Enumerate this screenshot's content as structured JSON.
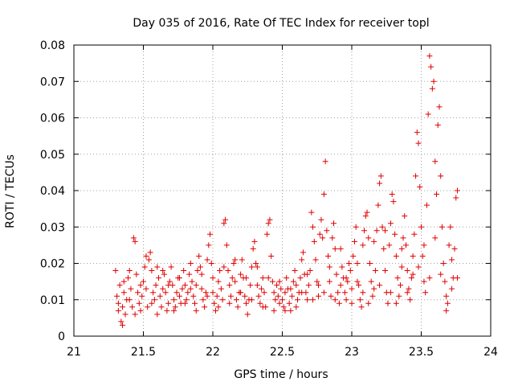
{
  "chart_data": {
    "type": "scatter",
    "title": "Day 035 of 2016, Rate Of TEC Index for receiver topl",
    "xlabel": "GPS time / hours",
    "ylabel": "ROTI / TECUs",
    "xlim": [
      21,
      24
    ],
    "ylim": [
      0,
      0.08
    ],
    "grid": true,
    "marker": "+",
    "marker_color": "#e00000",
    "x_ticks": [
      21,
      21.5,
      22,
      22.5,
      23,
      23.5,
      24
    ],
    "x_tick_labels": [
      "21",
      "21.5",
      "22",
      "22.5",
      "23",
      "23.5",
      "24"
    ],
    "y_ticks": [
      0,
      0.01,
      0.02,
      0.03,
      0.04,
      0.05,
      0.06,
      0.07,
      0.08
    ],
    "y_tick_labels": [
      "0",
      "0.01",
      "0.02",
      "0.03",
      "0.04",
      "0.05",
      "0.06",
      "0.07",
      "0.08"
    ],
    "points": [
      [
        21.3,
        0.018
      ],
      [
        21.31,
        0.011
      ],
      [
        21.32,
        0.009
      ],
      [
        21.33,
        0.014
      ],
      [
        21.34,
        0.004
      ],
      [
        21.35,
        0.003
      ],
      [
        21.35,
        0.008
      ],
      [
        21.36,
        0.012
      ],
      [
        21.37,
        0.006
      ],
      [
        21.38,
        0.01
      ],
      [
        21.39,
        0.016
      ],
      [
        21.4,
        0.018
      ],
      [
        21.41,
        0.013
      ],
      [
        21.42,
        0.008
      ],
      [
        21.43,
        0.027
      ],
      [
        21.44,
        0.026
      ],
      [
        21.45,
        0.017
      ],
      [
        21.46,
        0.012
      ],
      [
        21.47,
        0.009
      ],
      [
        21.48,
        0.007
      ],
      [
        21.49,
        0.011
      ],
      [
        21.5,
        0.015
      ],
      [
        21.51,
        0.019
      ],
      [
        21.52,
        0.013
      ],
      [
        21.53,
        0.008
      ],
      [
        21.54,
        0.021
      ],
      [
        21.55,
        0.023
      ],
      [
        21.56,
        0.018
      ],
      [
        21.57,
        0.012
      ],
      [
        21.58,
        0.01
      ],
      [
        21.59,
        0.014
      ],
      [
        21.6,
        0.019
      ],
      [
        21.61,
        0.016
      ],
      [
        21.62,
        0.011
      ],
      [
        21.63,
        0.008
      ],
      [
        21.64,
        0.013
      ],
      [
        21.65,
        0.017
      ],
      [
        21.66,
        0.012
      ],
      [
        21.67,
        0.007
      ],
      [
        21.68,
        0.009
      ],
      [
        21.69,
        0.015
      ],
      [
        21.7,
        0.019
      ],
      [
        21.71,
        0.014
      ],
      [
        21.72,
        0.01
      ],
      [
        21.73,
        0.008
      ],
      [
        21.74,
        0.012
      ],
      [
        21.75,
        0.016
      ],
      [
        21.76,
        0.011
      ],
      [
        21.77,
        0.009
      ],
      [
        21.78,
        0.013
      ],
      [
        21.79,
        0.018
      ],
      [
        21.8,
        0.014
      ],
      [
        21.81,
        0.01
      ],
      [
        21.82,
        0.012
      ],
      [
        21.83,
        0.017
      ],
      [
        21.84,
        0.02
      ],
      [
        21.85,
        0.015
      ],
      [
        21.86,
        0.011
      ],
      [
        21.87,
        0.009
      ],
      [
        21.88,
        0.014
      ],
      [
        21.89,
        0.018
      ],
      [
        21.9,
        0.022
      ],
      [
        21.91,
        0.019
      ],
      [
        21.92,
        0.013
      ],
      [
        21.93,
        0.01
      ],
      [
        21.94,
        0.008
      ],
      [
        21.95,
        0.012
      ],
      [
        21.96,
        0.021
      ],
      [
        21.97,
        0.025
      ],
      [
        21.98,
        0.028
      ],
      [
        21.99,
        0.02
      ],
      [
        22.0,
        0.012
      ],
      [
        22.01,
        0.009
      ],
      [
        22.02,
        0.007
      ],
      [
        22.03,
        0.011
      ],
      [
        22.04,
        0.015
      ],
      [
        22.05,
        0.018
      ],
      [
        22.06,
        0.013
      ],
      [
        22.07,
        0.01
      ],
      [
        22.08,
        0.031
      ],
      [
        22.09,
        0.032
      ],
      [
        22.1,
        0.025
      ],
      [
        22.11,
        0.018
      ],
      [
        22.12,
        0.014
      ],
      [
        22.13,
        0.011
      ],
      [
        22.14,
        0.016
      ],
      [
        22.15,
        0.02
      ],
      [
        22.16,
        0.015
      ],
      [
        22.17,
        0.01
      ],
      [
        22.18,
        0.008
      ],
      [
        22.19,
        0.012
      ],
      [
        22.2,
        0.017
      ],
      [
        22.21,
        0.021
      ],
      [
        22.22,
        0.016
      ],
      [
        22.23,
        0.011
      ],
      [
        22.24,
        0.009
      ],
      [
        22.25,
        0.006
      ],
      [
        22.26,
        0.01
      ],
      [
        22.27,
        0.014
      ],
      [
        22.28,
        0.019
      ],
      [
        22.29,
        0.024
      ],
      [
        22.3,
        0.026
      ],
      [
        22.31,
        0.02
      ],
      [
        22.32,
        0.014
      ],
      [
        22.33,
        0.011
      ],
      [
        22.34,
        0.009
      ],
      [
        22.35,
        0.013
      ],
      [
        22.36,
        0.016
      ],
      [
        22.37,
        0.012
      ],
      [
        22.38,
        0.008
      ],
      [
        22.39,
        0.028
      ],
      [
        22.4,
        0.031
      ],
      [
        22.41,
        0.032
      ],
      [
        22.42,
        0.022
      ],
      [
        22.43,
        0.015
      ],
      [
        22.44,
        0.012
      ],
      [
        22.45,
        0.01
      ],
      [
        22.46,
        0.014
      ],
      [
        22.47,
        0.011
      ],
      [
        22.48,
        0.009
      ],
      [
        22.49,
        0.013
      ],
      [
        22.5,
        0.01
      ],
      [
        22.51,
        0.008
      ],
      [
        22.52,
        0.012
      ],
      [
        22.53,
        0.016
      ],
      [
        22.54,
        0.013
      ],
      [
        22.55,
        0.009
      ],
      [
        22.56,
        0.007
      ],
      [
        22.57,
        0.011
      ],
      [
        22.58,
        0.015
      ],
      [
        22.59,
        0.018
      ],
      [
        22.6,
        0.014
      ],
      [
        22.61,
        0.01
      ],
      [
        22.62,
        0.012
      ],
      [
        22.63,
        0.016
      ],
      [
        22.64,
        0.021
      ],
      [
        22.65,
        0.023
      ],
      [
        22.66,
        0.017
      ],
      [
        22.67,
        0.012
      ],
      [
        22.68,
        0.01
      ],
      [
        22.69,
        0.014
      ],
      [
        22.7,
        0.018
      ],
      [
        22.71,
        0.034
      ],
      [
        22.72,
        0.03
      ],
      [
        22.73,
        0.026
      ],
      [
        22.74,
        0.021
      ],
      [
        22.75,
        0.015
      ],
      [
        22.76,
        0.011
      ],
      [
        22.77,
        0.028
      ],
      [
        22.78,
        0.032
      ],
      [
        22.79,
        0.027
      ],
      [
        22.8,
        0.039
      ],
      [
        22.81,
        0.048
      ],
      [
        22.82,
        0.029
      ],
      [
        22.83,
        0.022
      ],
      [
        22.84,
        0.015
      ],
      [
        22.85,
        0.011
      ],
      [
        22.86,
        0.027
      ],
      [
        22.87,
        0.031
      ],
      [
        22.88,
        0.024
      ],
      [
        22.89,
        0.017
      ],
      [
        22.9,
        0.012
      ],
      [
        22.91,
        0.009
      ],
      [
        22.92,
        0.014
      ],
      [
        22.93,
        0.019
      ],
      [
        22.94,
        0.016
      ],
      [
        22.95,
        0.012
      ],
      [
        22.96,
        0.01
      ],
      [
        22.97,
        0.015
      ],
      [
        22.98,
        0.02
      ],
      [
        22.99,
        0.018
      ],
      [
        23.0,
        0.013
      ],
      [
        23.01,
        0.022
      ],
      [
        23.02,
        0.026
      ],
      [
        23.03,
        0.03
      ],
      [
        23.04,
        0.02
      ],
      [
        23.05,
        0.014
      ],
      [
        23.06,
        0.01
      ],
      [
        23.07,
        0.008
      ],
      [
        23.08,
        0.025
      ],
      [
        23.09,
        0.029
      ],
      [
        23.1,
        0.033
      ],
      [
        23.11,
        0.034
      ],
      [
        23.12,
        0.027
      ],
      [
        23.13,
        0.02
      ],
      [
        23.14,
        0.015
      ],
      [
        23.15,
        0.011
      ],
      [
        23.16,
        0.013
      ],
      [
        23.17,
        0.018
      ],
      [
        23.18,
        0.029
      ],
      [
        23.19,
        0.036
      ],
      [
        23.2,
        0.042
      ],
      [
        23.21,
        0.044
      ],
      [
        23.22,
        0.03
      ],
      [
        23.23,
        0.024
      ],
      [
        23.24,
        0.018
      ],
      [
        23.25,
        0.012
      ],
      [
        23.26,
        0.009
      ],
      [
        23.27,
        0.025
      ],
      [
        23.28,
        0.031
      ],
      [
        23.29,
        0.039
      ],
      [
        23.3,
        0.037
      ],
      [
        23.31,
        0.028
      ],
      [
        23.32,
        0.022
      ],
      [
        23.33,
        0.016
      ],
      [
        23.34,
        0.011
      ],
      [
        23.35,
        0.014
      ],
      [
        23.36,
        0.019
      ],
      [
        23.37,
        0.027
      ],
      [
        23.38,
        0.033
      ],
      [
        23.39,
        0.025
      ],
      [
        23.4,
        0.018
      ],
      [
        23.41,
        0.013
      ],
      [
        23.42,
        0.01
      ],
      [
        23.43,
        0.016
      ],
      [
        23.44,
        0.022
      ],
      [
        23.45,
        0.028
      ],
      [
        23.46,
        0.044
      ],
      [
        23.47,
        0.056
      ],
      [
        23.48,
        0.053
      ],
      [
        23.49,
        0.041
      ],
      [
        23.5,
        0.03
      ],
      [
        23.51,
        0.022
      ],
      [
        23.52,
        0.015
      ],
      [
        23.53,
        0.012
      ],
      [
        23.54,
        0.036
      ],
      [
        23.55,
        0.061
      ],
      [
        23.56,
        0.077
      ],
      [
        23.57,
        0.074
      ],
      [
        23.58,
        0.068
      ],
      [
        23.59,
        0.07
      ],
      [
        23.6,
        0.048
      ],
      [
        23.61,
        0.039
      ],
      [
        23.62,
        0.058
      ],
      [
        23.63,
        0.063
      ],
      [
        23.64,
        0.044
      ],
      [
        23.65,
        0.03
      ],
      [
        23.66,
        0.02
      ],
      [
        23.67,
        0.015
      ],
      [
        23.68,
        0.011
      ],
      [
        23.69,
        0.009
      ],
      [
        23.7,
        0.025
      ],
      [
        23.71,
        0.03
      ],
      [
        23.72,
        0.021
      ],
      [
        23.73,
        0.016
      ],
      [
        23.74,
        0.024
      ],
      [
        23.75,
        0.038
      ],
      [
        23.76,
        0.04
      ],
      [
        21.32,
        0.007
      ],
      [
        21.36,
        0.015
      ],
      [
        21.4,
        0.01
      ],
      [
        21.44,
        0.006
      ],
      [
        21.48,
        0.014
      ],
      [
        21.52,
        0.022
      ],
      [
        21.56,
        0.009
      ],
      [
        21.6,
        0.006
      ],
      [
        21.64,
        0.018
      ],
      [
        21.68,
        0.014
      ],
      [
        21.72,
        0.007
      ],
      [
        21.76,
        0.016
      ],
      [
        21.8,
        0.009
      ],
      [
        21.84,
        0.013
      ],
      [
        21.88,
        0.007
      ],
      [
        21.92,
        0.017
      ],
      [
        21.96,
        0.011
      ],
      [
        22.0,
        0.016
      ],
      [
        22.04,
        0.008
      ],
      [
        22.08,
        0.019
      ],
      [
        22.12,
        0.009
      ],
      [
        22.16,
        0.021
      ],
      [
        22.2,
        0.012
      ],
      [
        22.24,
        0.016
      ],
      [
        22.28,
        0.01
      ],
      [
        22.32,
        0.019
      ],
      [
        22.36,
        0.008
      ],
      [
        22.4,
        0.016
      ],
      [
        22.44,
        0.007
      ],
      [
        22.48,
        0.015
      ],
      [
        22.52,
        0.007
      ],
      [
        22.56,
        0.013
      ],
      [
        22.6,
        0.008
      ],
      [
        22.64,
        0.012
      ],
      [
        22.68,
        0.017
      ],
      [
        22.72,
        0.01
      ],
      [
        22.76,
        0.014
      ],
      [
        22.8,
        0.012
      ],
      [
        22.84,
        0.019
      ],
      [
        22.88,
        0.01
      ],
      [
        22.92,
        0.024
      ],
      [
        22.96,
        0.016
      ],
      [
        23.0,
        0.009
      ],
      [
        23.04,
        0.015
      ],
      [
        23.08,
        0.012
      ],
      [
        23.12,
        0.009
      ],
      [
        23.16,
        0.026
      ],
      [
        23.2,
        0.014
      ],
      [
        23.24,
        0.029
      ],
      [
        23.28,
        0.012
      ],
      [
        23.32,
        0.009
      ],
      [
        23.36,
        0.024
      ],
      [
        23.4,
        0.012
      ],
      [
        23.44,
        0.017
      ],
      [
        23.48,
        0.019
      ],
      [
        23.52,
        0.025
      ],
      [
        23.56,
        0.016
      ],
      [
        23.6,
        0.027
      ],
      [
        23.64,
        0.017
      ],
      [
        23.68,
        0.007
      ],
      [
        23.72,
        0.013
      ],
      [
        23.76,
        0.016
      ]
    ]
  }
}
